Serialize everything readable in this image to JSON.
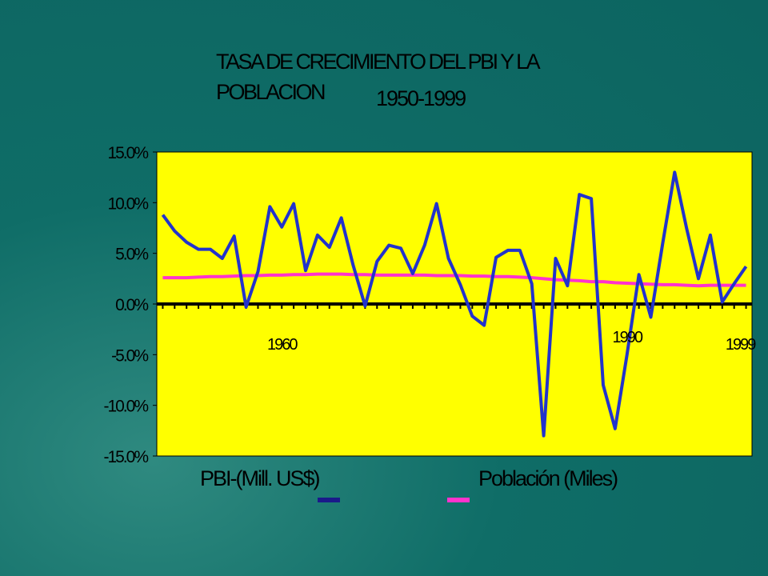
{
  "chart_data": {
    "type": "line",
    "title": "TASA DE CRECIMIENTO  DEL PBI Y LA POBLACION",
    "subtitle": "1950-1999",
    "x": [
      1950,
      1951,
      1952,
      1953,
      1954,
      1955,
      1956,
      1957,
      1958,
      1959,
      1960,
      1961,
      1962,
      1963,
      1964,
      1965,
      1966,
      1967,
      1968,
      1969,
      1970,
      1971,
      1972,
      1973,
      1974,
      1975,
      1976,
      1977,
      1978,
      1979,
      1980,
      1981,
      1982,
      1983,
      1984,
      1985,
      1986,
      1987,
      1988,
      1989,
      1990,
      1991,
      1992,
      1993,
      1994,
      1995,
      1996,
      1997,
      1998,
      1999
    ],
    "series": [
      {
        "name": "PBI-(Mill. US$)",
        "color": "#2233cc",
        "legend_color": "#1a1a8a",
        "values": [
          8.8,
          7.2,
          6.1,
          5.4,
          5.4,
          4.5,
          6.7,
          -0.3,
          3.2,
          9.6,
          7.6,
          9.9,
          3.3,
          6.8,
          5.6,
          8.5,
          3.8,
          -0.2,
          4.2,
          5.8,
          5.5,
          3.0,
          5.8,
          9.9,
          4.5,
          1.9,
          -1.2,
          -2.1,
          4.6,
          5.3,
          5.3,
          2.0,
          -13.0,
          4.5,
          1.8,
          10.8,
          10.4,
          -8.0,
          -12.3,
          -5.0,
          2.9,
          -1.3,
          6.0,
          13.0,
          7.5,
          2.5,
          6.8,
          0.2,
          2.0,
          3.7
        ]
      },
      {
        "name": "Población (Miles)",
        "color": "#ff33cc",
        "legend_color": "#ff33cc",
        "values": [
          2.6,
          2.6,
          2.6,
          2.65,
          2.7,
          2.7,
          2.75,
          2.8,
          2.8,
          2.85,
          2.85,
          2.9,
          2.9,
          2.95,
          2.95,
          2.95,
          2.9,
          2.9,
          2.85,
          2.85,
          2.85,
          2.85,
          2.85,
          2.8,
          2.8,
          2.8,
          2.75,
          2.75,
          2.7,
          2.7,
          2.65,
          2.6,
          2.5,
          2.4,
          2.35,
          2.3,
          2.2,
          2.2,
          2.1,
          2.05,
          2.0,
          1.95,
          1.9,
          1.9,
          1.85,
          1.8,
          1.85,
          1.85,
          1.85,
          1.85
        ]
      }
    ],
    "xlim": [
      1949.5,
      1999.5
    ],
    "ylim": [
      -15,
      15
    ],
    "yticks": [
      {
        "value": -15,
        "label": "-15.0%"
      },
      {
        "value": -10,
        "label": "-10.0%"
      },
      {
        "value": -5,
        "label": "-5.0%"
      },
      {
        "value": 0,
        "label": "0.0%"
      },
      {
        "value": 5,
        "label": "5.0%"
      },
      {
        "value": 10,
        "label": "10.0%"
      },
      {
        "value": 15,
        "label": "15.0%"
      }
    ],
    "annotations": [
      {
        "text": "1960",
        "x": 1960,
        "y": -4.5
      },
      {
        "text": "1990",
        "x": 1989,
        "y": -3.8
      },
      {
        "text": "1999",
        "x": 1998.5,
        "y": -4.5
      }
    ],
    "plot_background": "#ffff00",
    "grid": false
  }
}
